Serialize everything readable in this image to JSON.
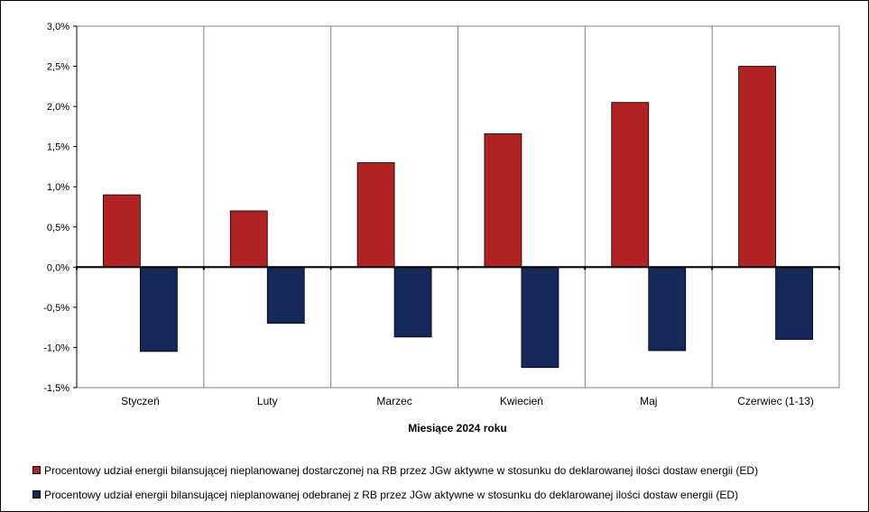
{
  "chart_data": {
    "type": "bar",
    "categories": [
      "Styczeń",
      "Luty",
      "Marzec",
      "Kwiecień",
      "Maj",
      "Czerwiec (1-13)"
    ],
    "series": [
      {
        "name": "Procentowy udział energii bilansującej nieplanowanej dostarczonej na RB przez JGw aktywne w stosunku do deklarowanej ilości dostaw energii (ED)",
        "color": "#B22222",
        "values": [
          0.9,
          0.7,
          1.3,
          1.66,
          2.05,
          2.5
        ]
      },
      {
        "name": "Procentowy udział energii bilansującej nieplanowanej odebranej z RB przez JGw aktywne w stosunku do deklarowanej ilości dostaw energii (ED)",
        "color": "#14285A",
        "values": [
          -1.05,
          -0.7,
          -0.87,
          -1.25,
          -1.04,
          -0.9
        ]
      }
    ],
    "yticks": [
      3.0,
      2.5,
      2.0,
      1.5,
      1.0,
      0.5,
      0.0,
      -0.5,
      -1.0,
      -1.5
    ],
    "ytick_labels": [
      "3,0%",
      "2,5%",
      "2,0%",
      "1,5%",
      "1,0%",
      "0,5%",
      "0,0%",
      "-0,5%",
      "-1,0%",
      "-1,5%"
    ],
    "ylim": [
      -1.5,
      3.0
    ],
    "xlabel": "Miesiące 2024  roku",
    "ylabel": "",
    "grid": "vertical",
    "legend_position": "bottom"
  }
}
